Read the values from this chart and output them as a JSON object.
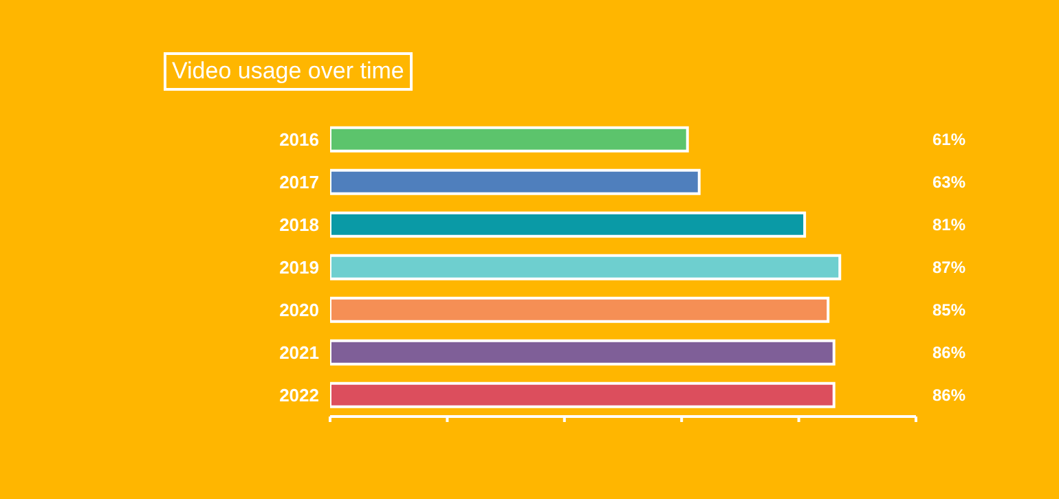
{
  "chart_data": {
    "type": "bar",
    "orientation": "horizontal",
    "title": "Video usage over time",
    "categories": [
      "2016",
      "2017",
      "2018",
      "2019",
      "2020",
      "2021",
      "2022"
    ],
    "values": [
      61,
      63,
      81,
      87,
      85,
      86,
      86
    ],
    "value_labels": [
      "61%",
      "63%",
      "81%",
      "87%",
      "85%",
      "86%",
      "86%"
    ],
    "colors": [
      "#5cc46c",
      "#4f7fbd",
      "#0a9aa6",
      "#6ecfcf",
      "#f58f55",
      "#7f5f98",
      "#dc4e5d"
    ],
    "xlim": [
      0,
      100
    ],
    "xticks": [
      {
        "value": 0,
        "label": null
      },
      {
        "value": 20,
        "label": null
      },
      {
        "value": 40,
        "label": null
      },
      {
        "value": 60,
        "label": null
      },
      {
        "value": 80,
        "label": null
      },
      {
        "value": 100,
        "label": null
      }
    ],
    "tick_labels": "y",
    "grid": false,
    "legend": false
  }
}
